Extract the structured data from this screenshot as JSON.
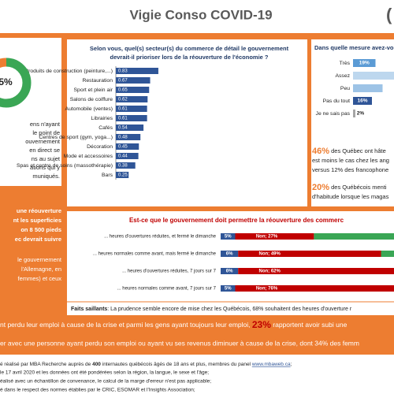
{
  "header": {
    "title": "Vigie Conso COVID-19",
    "logo": "("
  },
  "left_panel": {
    "donut_label": "5%",
    "lines": [
      "ens n'ayant",
      "le point de",
      "ouvernement",
      "en direct se",
      "ns au sujet",
      "ations qui y",
      "muniqués."
    ]
  },
  "left_notes": {
    "block1": [
      "une réouverture",
      "nt les superficies",
      "on 8 500 pieds",
      "ec devrait suivre"
    ],
    "block2": [
      "le gouvernement",
      "l'Allemagne, en",
      "femmes) et ceux"
    ]
  },
  "chart_data": [
    {
      "type": "hbar",
      "title": [
        "Selon vous, quel(s) secteur(s) du commerce de détail le gouvernement",
        "devrait-il prioriser lors de la réouverture de l'économie ?"
      ],
      "categories": [
        "Produits de construction (peinture,...)",
        "Restauration",
        "Sport et plein air",
        "Salons de coiffure",
        "Automobile (ventes)",
        "Librairies",
        "Cafés",
        "Centres de sport (gym, yoga...)",
        "Décoration",
        "Mode et accessoires",
        "Spas et centre de soins (massothérapie)",
        "Bars"
      ],
      "values": [
        0.83,
        0.67,
        0.65,
        0.62,
        0.61,
        0.61,
        0.54,
        0.48,
        0.45,
        0.44,
        0.38,
        0.25
      ],
      "color": "#2f5597",
      "xlim": [
        0,
        1
      ]
    },
    {
      "type": "hbar_pct",
      "title": "Dans quelle mesure avez-vou",
      "categories": [
        "Très",
        "Assez",
        "Peu",
        "Pas du tout",
        "Je ne sais pas"
      ],
      "values": [
        19,
        38,
        25,
        16,
        2
      ],
      "value_labels": [
        "19%",
        null,
        null,
        "16%",
        "2%"
      ],
      "colors": [
        "#5b9bd5",
        "#bdd7ee",
        "#9dc3e6",
        "#2f5597",
        "#a6a6a6"
      ],
      "xlim": [
        0,
        40
      ]
    },
    {
      "type": "stacked_hbar",
      "title": "Est-ce que le gouvernement doit permettre la réouverture des commerc",
      "categories": [
        "... heures d'ouvertures réduites, et fermé le dimanche",
        "... heures normales comme avant, mais fermé le dimanche",
        "... heures d'ouvertures réduites, 7 jours sur 7",
        "... heures normales comme avant, 7 jours sur 7"
      ],
      "series": [
        {
          "color": "#2f5597",
          "values": [
            5,
            6,
            6,
            5
          ],
          "value_labels": [
            "5%",
            "6%",
            "6%",
            "5%"
          ]
        },
        {
          "color": "#c00000",
          "values": [
            27,
            49,
            62,
            76
          ],
          "value_labels": [
            "Non; 27%",
            "Non; 49%",
            "Non; 62%",
            "Non; 76%"
          ]
        },
        {
          "color": "#3aa655",
          "values": [
            68,
            45,
            32,
            19
          ]
        }
      ],
      "xlim": [
        0,
        100
      ]
    },
    {
      "type": "donut",
      "values": [
        75,
        25
      ],
      "colors": [
        "#3aa655",
        "#ed7d31"
      ]
    }
  ],
  "stats": [
    {
      "highlight": "46%",
      "lines": [
        " des Québec ont hâte",
        "est moins le cas chez les ang",
        "versus 12% des francophone"
      ]
    },
    {
      "highlight": "20%",
      "lines": [
        " des Québécois menti",
        "d'habitude lorsque les magas"
      ]
    }
  ],
  "faits": {
    "label": "Faits saillants",
    "text": ": La prudence semble encore de mise chez les Québécois, 68% souhaitent des heures d'ouverture r"
  },
  "bottom": [
    {
      "before": "nt perdu leur emploi à cause de la crise et parmi les gens ayant toujours leur emploi, ",
      "highlight": "23%",
      "after": " rapportent avoir subi une"
    },
    {
      "before": "er avec une personne ayant perdu son emploi ou ayant vu ses revenus diminuer à cause de la crise, dont 34% des femm"
    }
  ],
  "footer": {
    "line0": [
      "é réalisé par MBA Recherche auprès de ",
      "400",
      " internautes québécois âgés de 18 ans et plus, membres du panel ",
      "www.mbaweb.ca",
      ";"
    ],
    "lines": [
      "le 17 avril 2020 et les données ont été pondérées selon la région, la langue, le sexe et l'âge;",
      "éalisé avec un échantillon de convenance, le calcul de la marge d'erreur n'est pas applicable;",
      "é dans le respect des normes établies par le CRIC, ESOMAR et l'Insights Association;"
    ]
  }
}
